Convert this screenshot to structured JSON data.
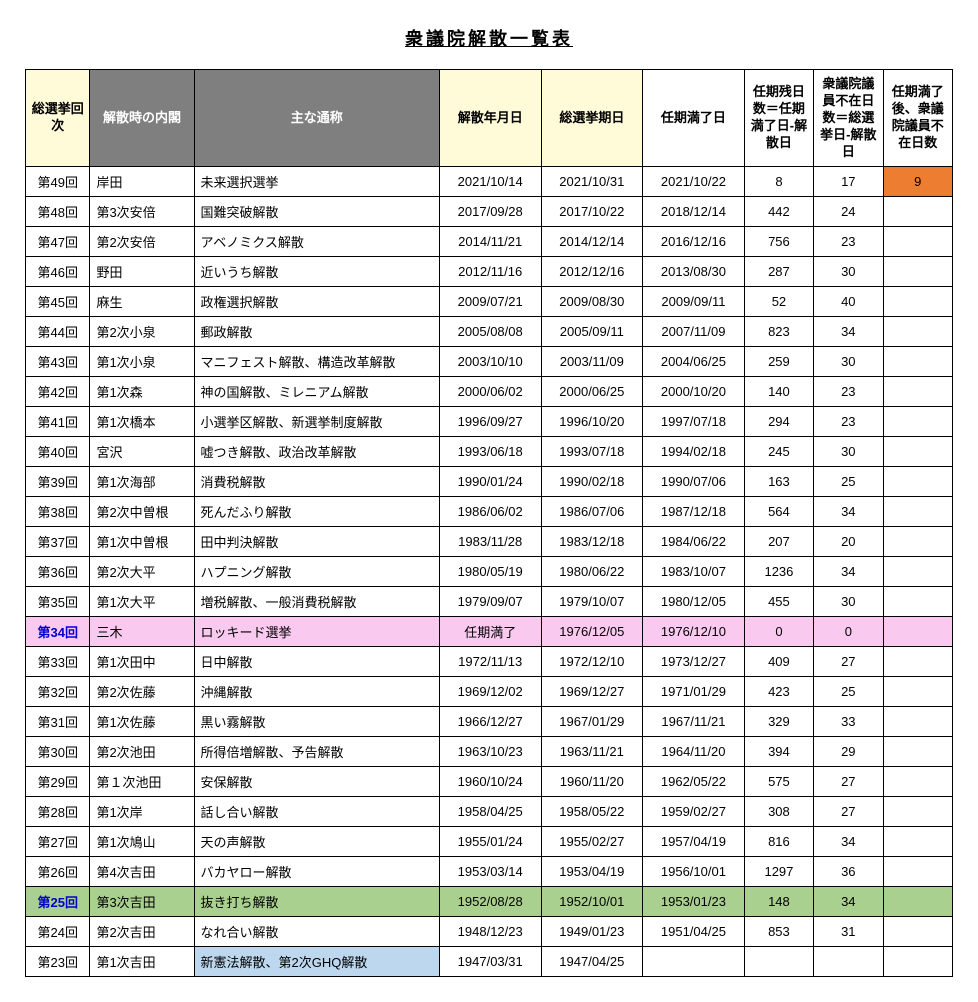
{
  "title": "衆議院解散一覧表",
  "colors": {
    "header_yellow": "#fffad7",
    "header_grey": "#7f7f7f",
    "header_white": "#ffffff",
    "row_pink": "#f9c9ef",
    "row_green": "#a9d08e",
    "row_blue": "#bdd7ee",
    "cell_orange": "#ed7d31",
    "border": "#000000"
  },
  "headers": {
    "num": "総選挙回次",
    "cab": "解散時の内閣",
    "name": "主な通称",
    "diss": "解散年月日",
    "elec": "総選挙期日",
    "term": "任期満了日",
    "d1": "任期残日数＝任期満了日-解散日",
    "d2": "衆議院議員不在日数＝総選挙日-解散日",
    "d3": "任期満了後、衆議院議員不在日数"
  },
  "rows": [
    {
      "num": "第49回",
      "cab": "岸田",
      "name": "未来選択選挙",
      "diss": "2021/10/14",
      "elec": "2021/10/31",
      "term": "2021/10/22",
      "d1": "8",
      "d2": "17",
      "d3": "9",
      "d3_bg": "cell_orange"
    },
    {
      "num": "第48回",
      "cab": "第3次安倍",
      "name": "国難突破解散",
      "diss": "2017/09/28",
      "elec": "2017/10/22",
      "term": "2018/12/14",
      "d1": "442",
      "d2": "24",
      "d3": ""
    },
    {
      "num": "第47回",
      "cab": "第2次安倍",
      "name": "アベノミクス解散",
      "diss": "2014/11/21",
      "elec": "2014/12/14",
      "term": "2016/12/16",
      "d1": "756",
      "d2": "23",
      "d3": ""
    },
    {
      "num": "第46回",
      "cab": "野田",
      "name": "近いうち解散",
      "diss": "2012/11/16",
      "elec": "2012/12/16",
      "term": "2013/08/30",
      "d1": "287",
      "d2": "30",
      "d3": ""
    },
    {
      "num": "第45回",
      "cab": "麻生",
      "name": "政権選択解散",
      "diss": "2009/07/21",
      "elec": "2009/08/30",
      "term": "2009/09/11",
      "d1": "52",
      "d2": "40",
      "d3": ""
    },
    {
      "num": "第44回",
      "cab": "第2次小泉",
      "name": "郵政解散",
      "diss": "2005/08/08",
      "elec": "2005/09/11",
      "term": "2007/11/09",
      "d1": "823",
      "d2": "34",
      "d3": ""
    },
    {
      "num": "第43回",
      "cab": "第1次小泉",
      "name": "マニフェスト解散、構造改革解散",
      "diss": "2003/10/10",
      "elec": "2003/11/09",
      "term": "2004/06/25",
      "d1": "259",
      "d2": "30",
      "d3": ""
    },
    {
      "num": "第42回",
      "cab": "第1次森",
      "name": "神の国解散、ミレニアム解散",
      "diss": "2000/06/02",
      "elec": "2000/06/25",
      "term": "2000/10/20",
      "d1": "140",
      "d2": "23",
      "d3": ""
    },
    {
      "num": "第41回",
      "cab": "第1次橋本",
      "name": "小選挙区解散、新選挙制度解散",
      "diss": "1996/09/27",
      "elec": "1996/10/20",
      "term": "1997/07/18",
      "d1": "294",
      "d2": "23",
      "d3": ""
    },
    {
      "num": "第40回",
      "cab": "宮沢",
      "name": "嘘つき解散、政治改革解散",
      "diss": "1993/06/18",
      "elec": "1993/07/18",
      "term": "1994/02/18",
      "d1": "245",
      "d2": "30",
      "d3": ""
    },
    {
      "num": "第39回",
      "cab": "第1次海部",
      "name": "消費税解散",
      "diss": "1990/01/24",
      "elec": "1990/02/18",
      "term": "1990/07/06",
      "d1": "163",
      "d2": "25",
      "d3": ""
    },
    {
      "num": "第38回",
      "cab": "第2次中曽根",
      "name": "死んだふり解散",
      "diss": "1986/06/02",
      "elec": "1986/07/06",
      "term": "1987/12/18",
      "d1": "564",
      "d2": "34",
      "d3": ""
    },
    {
      "num": "第37回",
      "cab": "第1次中曽根",
      "name": "田中判決解散",
      "diss": "1983/11/28",
      "elec": "1983/12/18",
      "term": "1984/06/22",
      "d1": "207",
      "d2": "20",
      "d3": ""
    },
    {
      "num": "第36回",
      "cab": "第2次大平",
      "name": "ハプニング解散",
      "diss": "1980/05/19",
      "elec": "1980/06/22",
      "term": "1983/10/07",
      "d1": "1236",
      "d2": "34",
      "d3": ""
    },
    {
      "num": "第35回",
      "cab": "第1次大平",
      "name": "増税解散、一般消費税解散",
      "diss": "1979/09/07",
      "elec": "1979/10/07",
      "term": "1980/12/05",
      "d1": "455",
      "d2": "30",
      "d3": ""
    },
    {
      "num": "第34回",
      "cab": "三木",
      "name": "ロッキード選挙",
      "diss": "任期満了",
      "elec": "1976/12/05",
      "term": "1976/12/10",
      "d1": "0",
      "d2": "0",
      "d3": "",
      "row_bg": "row_pink",
      "num_style": "bold-link"
    },
    {
      "num": "第33回",
      "cab": "第1次田中",
      "name": "日中解散",
      "diss": "1972/11/13",
      "elec": "1972/12/10",
      "term": "1973/12/27",
      "d1": "409",
      "d2": "27",
      "d3": ""
    },
    {
      "num": "第32回",
      "cab": "第2次佐藤",
      "name": "沖縄解散",
      "diss": "1969/12/02",
      "elec": "1969/12/27",
      "term": "1971/01/29",
      "d1": "423",
      "d2": "25",
      "d3": ""
    },
    {
      "num": "第31回",
      "cab": "第1次佐藤",
      "name": "黒い霧解散",
      "diss": "1966/12/27",
      "elec": "1967/01/29",
      "term": "1967/11/21",
      "d1": "329",
      "d2": "33",
      "d3": ""
    },
    {
      "num": "第30回",
      "cab": "第2次池田",
      "name": "所得倍増解散、予告解散",
      "diss": "1963/10/23",
      "elec": "1963/11/21",
      "term": "1964/11/20",
      "d1": "394",
      "d2": "29",
      "d3": ""
    },
    {
      "num": "第29回",
      "cab": "第１次池田",
      "name": "安保解散",
      "diss": "1960/10/24",
      "elec": "1960/11/20",
      "term": "1962/05/22",
      "d1": "575",
      "d2": "27",
      "d3": ""
    },
    {
      "num": "第28回",
      "cab": "第1次岸",
      "name": "話し合い解散",
      "diss": "1958/04/25",
      "elec": "1958/05/22",
      "term": "1959/02/27",
      "d1": "308",
      "d2": "27",
      "d3": ""
    },
    {
      "num": "第27回",
      "cab": "第1次鳩山",
      "name": "天の声解散",
      "diss": "1955/01/24",
      "elec": "1955/02/27",
      "term": "1957/04/19",
      "d1": "816",
      "d2": "34",
      "d3": ""
    },
    {
      "num": "第26回",
      "cab": "第4次吉田",
      "name": "バカヤロー解散",
      "diss": "1953/03/14",
      "elec": "1953/04/19",
      "term": "1956/10/01",
      "d1": "1297",
      "d2": "36",
      "d3": ""
    },
    {
      "num": "第25回",
      "cab": "第3次吉田",
      "name": "抜き打ち解散",
      "diss": "1952/08/28",
      "elec": "1952/10/01",
      "term": "1953/01/23",
      "d1": "148",
      "d2": "34",
      "d3": "",
      "row_bg": "row_green",
      "num_style": "bold-link"
    },
    {
      "num": "第24回",
      "cab": "第2次吉田",
      "name": "なれ合い解散",
      "diss": "1948/12/23",
      "elec": "1949/01/23",
      "term": "1951/04/25",
      "d1": "853",
      "d2": "31",
      "d3": ""
    },
    {
      "num": "第23回",
      "cab": "第1次吉田",
      "name": "新憲法解散、第2次GHQ解散",
      "diss": "1947/03/31",
      "elec": "1947/04/25",
      "term": "",
      "d1": "",
      "d2": "",
      "d3": "",
      "name_bg": "row_blue"
    }
  ]
}
